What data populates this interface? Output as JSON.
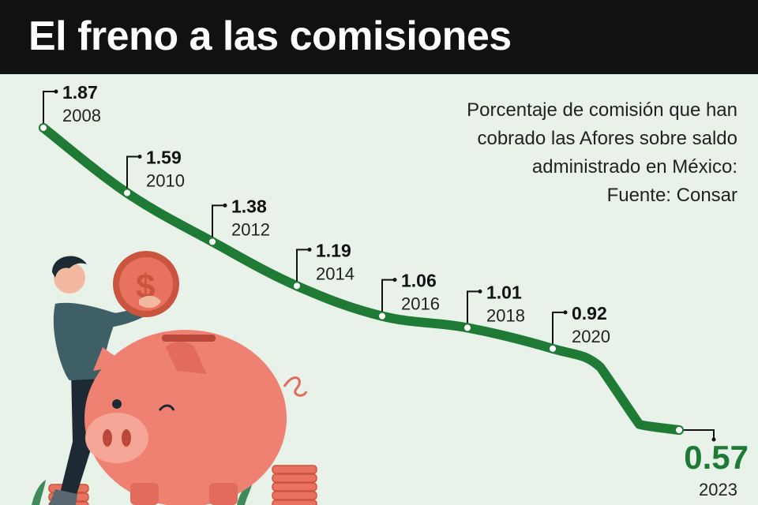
{
  "title": "El freno a las comisiones",
  "subtitle_lines": [
    "Porcentaje de comisión que han",
    "cobrado las Afores sobre saldo",
    "administrado en México:",
    "Fuente: Consar"
  ],
  "colors": {
    "line": "#1e7a34",
    "background": "#e9f2e9",
    "header": "#111111",
    "accent_value": "#1e7a34"
  },
  "chart_data": {
    "type": "line",
    "title": "El freno a las comisiones",
    "x": [
      "2008",
      "2010",
      "2012",
      "2014",
      "2016",
      "2018",
      "2020",
      "2023"
    ],
    "series": [
      {
        "values": [
          1.87,
          1.59,
          1.38,
          1.19,
          1.06,
          1.01,
          0.92,
          0.57
        ]
      }
    ],
    "value_labels": [
      "1.87",
      "1.59",
      "1.38",
      "1.19",
      "1.06",
      "1.01",
      "0.92",
      "0.57"
    ],
    "xlabel": "",
    "ylabel": "",
    "grid": false,
    "legend": "none"
  }
}
